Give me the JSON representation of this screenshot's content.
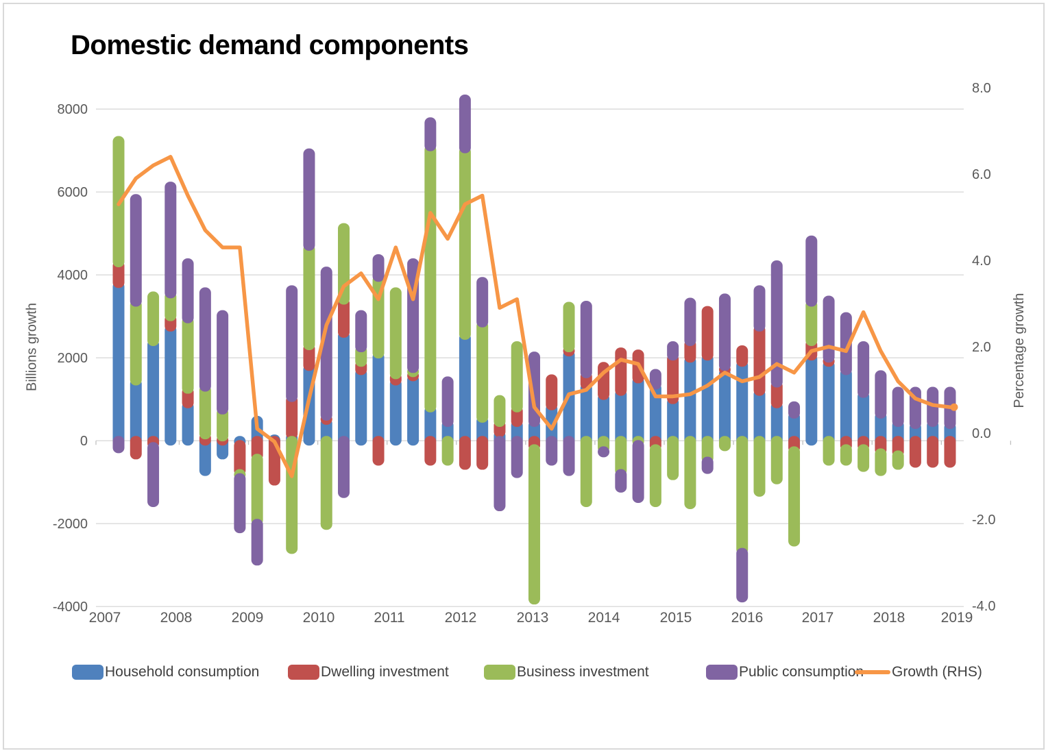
{
  "title": "Domestic demand components",
  "axes": {
    "left": {
      "title": "Billions growth",
      "ticks": [
        "8000",
        "6000",
        "4000",
        "2000",
        "0",
        "-2000",
        "-4000"
      ],
      "range": [
        -4000,
        8000
      ]
    },
    "right": {
      "title": "Percentage growth",
      "ticks": [
        "8.0",
        "6.0",
        "4.0",
        "2.0",
        "0.0",
        "-2.0",
        "-4.0"
      ],
      "range": [
        -4.0,
        8.0
      ]
    },
    "x": {
      "year_labels": [
        "2007",
        "2008",
        "2009",
        "2010",
        "2011",
        "2012",
        "2013",
        "2014",
        "2015",
        "2016",
        "2017",
        "2018",
        "2019"
      ]
    }
  },
  "colors": {
    "household": "#4F81BD",
    "dwelling": "#C0504D",
    "business": "#9BBB59",
    "public": "#8064A2",
    "growth_line": "#F79646",
    "gridline": "#D9D9D9",
    "axis_text": "#595959",
    "legend_text": "#404040"
  },
  "chart_data": {
    "type": "combo",
    "subtype": "stacked-bar-with-line",
    "grid": "horizontal-on",
    "legend_position": "bottom",
    "categories": [
      "2007 Q1",
      "2007 Q2",
      "2007 Q3",
      "2007 Q4",
      "2008 Q1",
      "2008 Q2",
      "2008 Q3",
      "2008 Q4",
      "2009 Q1",
      "2009 Q2",
      "2009 Q3",
      "2009 Q4",
      "2010 Q1",
      "2010 Q2",
      "2010 Q3",
      "2010 Q4",
      "2011 Q1",
      "2011 Q2",
      "2011 Q3",
      "2011 Q4",
      "2012 Q1",
      "2012 Q2",
      "2012 Q3",
      "2012 Q4",
      "2013 Q1",
      "2013 Q2",
      "2013 Q3",
      "2013 Q4",
      "2014 Q1",
      "2014 Q2",
      "2014 Q3",
      "2014 Q4",
      "2015 Q1",
      "2015 Q2",
      "2015 Q3",
      "2015 Q4",
      "2016 Q1",
      "2016 Q2",
      "2016 Q3",
      "2016 Q4",
      "2017 Q1",
      "2017 Q2",
      "2017 Q3",
      "2017 Q4",
      "2018 Q1",
      "2018 Q2",
      "2018 Q3",
      "2018 Q4",
      "2019 Q1"
    ],
    "series": [
      {
        "name": "Household consumption",
        "color": "#4F81BD",
        "values": [
          3850,
          1500,
          2450,
          2800,
          950,
          -850,
          -450,
          -150,
          600,
          150,
          200,
          1850,
          550,
          2650,
          1750,
          2150,
          1500,
          1600,
          850,
          500,
          2600,
          600,
          250,
          500,
          500,
          900,
          2200,
          1400,
          1150,
          1250,
          1550,
          1400,
          1050,
          2050,
          2100,
          1750,
          1950,
          1250,
          950,
          700,
          2100,
          1950,
          1750,
          1200,
          700,
          500,
          450,
          500,
          450
        ]
      },
      {
        "name": "Dwelling investment",
        "color": "#C0504D",
        "values": [
          500,
          -450,
          -200,
          250,
          350,
          200,
          150,
          -700,
          -480,
          -1080,
          900,
          500,
          100,
          800,
          200,
          -600,
          150,
          100,
          -600,
          0,
          -700,
          -700,
          250,
          350,
          -250,
          700,
          100,
          275,
          750,
          1000,
          650,
          -250,
          1050,
          400,
          1150,
          100,
          350,
          1550,
          500,
          -300,
          350,
          100,
          -250,
          -250,
          -350,
          -400,
          -650,
          -650,
          -650
        ]
      },
      {
        "name": "Business investment",
        "color": "#9BBB59",
        "values": [
          3000,
          1900,
          1150,
          550,
          1700,
          1150,
          650,
          -100,
          -1570,
          0,
          -2730,
          2400,
          -2150,
          1800,
          350,
          1850,
          2050,
          100,
          6300,
          -600,
          4500,
          2300,
          600,
          1550,
          -3700,
          0,
          1050,
          -1600,
          -300,
          -850,
          -150,
          -1350,
          -950,
          -1650,
          -550,
          -250,
          -2750,
          -1350,
          -1050,
          -2250,
          950,
          -600,
          -350,
          -500,
          -500,
          -300,
          0,
          0,
          0
        ]
      },
      {
        "name": "Public consumption",
        "color": "#8064A2",
        "values": [
          -300,
          2550,
          -1400,
          2650,
          1400,
          2350,
          2350,
          -1280,
          -960,
          0,
          2650,
          2300,
          3550,
          -1380,
          850,
          500,
          0,
          2600,
          650,
          1050,
          1250,
          1050,
          -1700,
          -900,
          1650,
          -600,
          -850,
          1700,
          -100,
          -400,
          -1350,
          330,
          300,
          1000,
          -250,
          1700,
          -1150,
          950,
          2900,
          250,
          1550,
          1450,
          1350,
          1200,
          1000,
          800,
          850,
          800,
          850
        ]
      }
    ],
    "line_series": {
      "name": "Growth (RHS)",
      "color": "#F79646",
      "axis": "right",
      "values": [
        5.3,
        5.9,
        6.2,
        6.4,
        5.5,
        4.7,
        4.3,
        4.3,
        0.1,
        -0.2,
        -1.0,
        0.8,
        2.5,
        3.4,
        3.7,
        3.1,
        4.3,
        3.1,
        5.1,
        4.5,
        5.3,
        5.5,
        2.9,
        3.1,
        0.6,
        0.1,
        0.9,
        1.0,
        1.4,
        1.7,
        1.6,
        0.85,
        0.85,
        0.9,
        1.1,
        1.4,
        1.2,
        1.3,
        1.6,
        1.4,
        1.9,
        2.0,
        1.9,
        2.8,
        1.9,
        1.2,
        0.8,
        0.65,
        0.6
      ]
    }
  },
  "legend": {
    "items": [
      {
        "label": "Household consumption"
      },
      {
        "label": "Dwelling investment"
      },
      {
        "label": "Business investment"
      },
      {
        "label": "Public consumption"
      },
      {
        "label": "Growth (RHS)"
      }
    ]
  }
}
